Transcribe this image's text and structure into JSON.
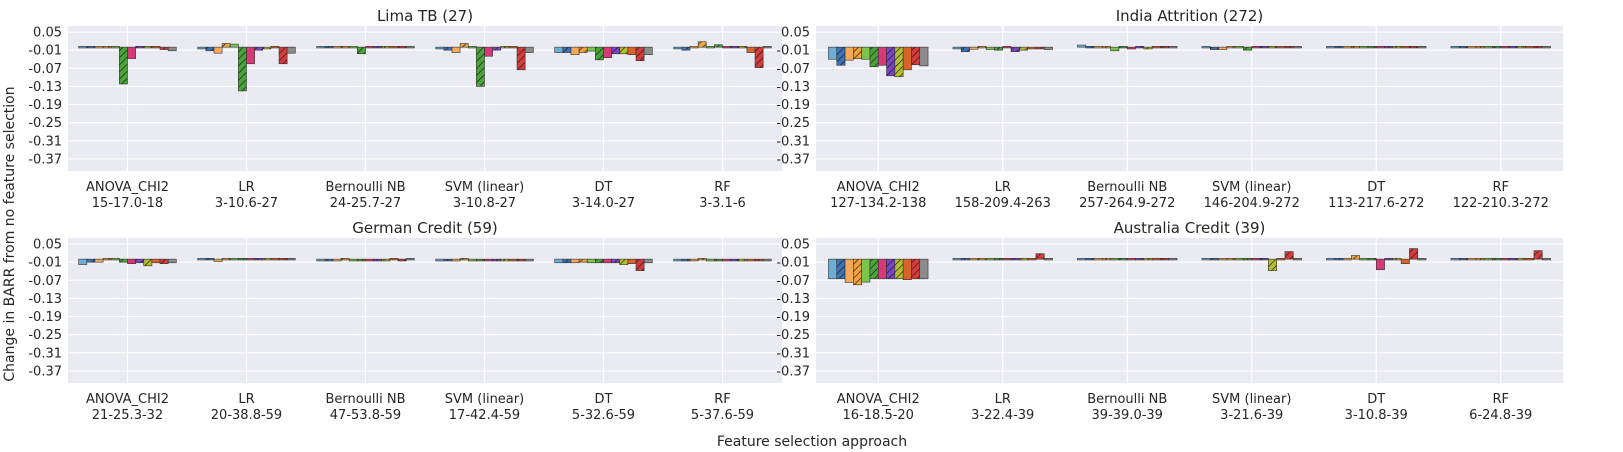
{
  "figure": {
    "ylabel": "Change in BARR from no feature selection",
    "xlabel": "Feature selection approach"
  },
  "palette": [
    "#6baed6",
    "#3d72b8",
    "#f4a95a",
    "#f1a23a",
    "#7cc44b",
    "#49a43a",
    "#d63a76",
    "#7b44c4",
    "#b5be2c",
    "#d9642b",
    "#d63b3b",
    "#8c8c8c"
  ],
  "hatched": [
    false,
    true,
    false,
    true,
    false,
    true,
    false,
    true,
    true,
    false,
    true,
    false
  ],
  "chart_data": [
    {
      "type": "bar",
      "title": "Lima TB (27)",
      "ylim": [
        -0.41,
        0.07
      ],
      "yticks": [
        "0.05",
        "-0.01",
        "-0.07",
        "-0.13",
        "-0.19",
        "-0.25",
        "-0.31",
        "-0.37"
      ],
      "ytick_values": [
        0.05,
        -0.01,
        -0.07,
        -0.13,
        -0.19,
        -0.25,
        -0.31,
        -0.37
      ],
      "groups": [
        {
          "name": "ANOVA_CHI2",
          "range": "15-17.0-18",
          "values": [
            -0.003,
            -0.003,
            0.002,
            -0.002,
            0.005,
            -0.122,
            -0.038,
            -0.002,
            -0.003,
            0.003,
            -0.008,
            -0.012
          ]
        },
        {
          "name": "LR",
          "range": "3-10.6-27",
          "values": [
            -0.006,
            -0.012,
            -0.02,
            0.012,
            0.01,
            -0.145,
            -0.055,
            -0.01,
            -0.006,
            -0.003,
            -0.055,
            -0.02
          ]
        },
        {
          "name": "Bernoulli NB",
          "range": "24-25.7-27",
          "values": [
            -0.001,
            -0.001,
            -0.002,
            -0.002,
            -0.003,
            -0.022,
            -0.003,
            -0.003,
            -0.002,
            -0.002,
            -0.002,
            -0.003
          ]
        },
        {
          "name": "SVM (linear)",
          "range": "3-10.8-27",
          "values": [
            -0.006,
            -0.01,
            -0.018,
            0.012,
            -0.002,
            -0.13,
            -0.03,
            -0.01,
            -0.005,
            -0.002,
            -0.075,
            -0.018
          ]
        },
        {
          "name": "DT",
          "range": "3-14.0-27",
          "values": [
            -0.018,
            -0.018,
            -0.025,
            -0.018,
            -0.013,
            -0.042,
            -0.035,
            -0.022,
            -0.022,
            -0.025,
            -0.045,
            -0.025
          ]
        },
        {
          "name": "RF",
          "range": "3-3.1-6",
          "values": [
            -0.006,
            -0.01,
            0.002,
            0.018,
            0.005,
            0.008,
            -0.003,
            -0.005,
            -0.002,
            -0.018,
            -0.068,
            -0.003
          ]
        }
      ]
    },
    {
      "type": "bar",
      "title": "India Attrition (272)",
      "ylim": [
        -0.41,
        0.07
      ],
      "yticks": [
        "0.05",
        "-0.01",
        "-0.07",
        "-0.13",
        "-0.19",
        "-0.25",
        "-0.31",
        "-0.37"
      ],
      "ytick_values": [
        0.05,
        -0.01,
        -0.07,
        -0.13,
        -0.19,
        -0.25,
        -0.31,
        -0.37
      ],
      "groups": [
        {
          "name": "ANOVA_CHI2",
          "range": "127-134.2-138",
          "values": [
            -0.04,
            -0.06,
            -0.043,
            -0.038,
            -0.04,
            -0.065,
            -0.06,
            -0.095,
            -0.098,
            -0.075,
            -0.058,
            -0.062
          ]
        },
        {
          "name": "LR",
          "range": "158-209.4-263",
          "values": [
            -0.006,
            -0.015,
            -0.007,
            -0.003,
            -0.008,
            -0.01,
            -0.005,
            -0.015,
            -0.01,
            -0.006,
            -0.006,
            -0.008
          ]
        },
        {
          "name": "Bernoulli NB",
          "range": "257-264.9-272",
          "values": [
            0.007,
            -0.004,
            -0.005,
            -0.001,
            -0.012,
            -0.003,
            -0.006,
            -0.005,
            -0.006,
            -0.003,
            -0.003,
            -0.004
          ]
        },
        {
          "name": "SVM (linear)",
          "range": "146-204.9-272",
          "values": [
            0.005,
            -0.008,
            -0.008,
            -0.001,
            0.002,
            -0.01,
            -0.004,
            -0.004,
            -0.004,
            -0.004,
            0.004,
            -0.004
          ]
        },
        {
          "name": "DT",
          "range": "113-217.6-272",
          "values": [
            -0.002,
            -0.002,
            -0.003,
            -0.003,
            -0.004,
            -0.005,
            -0.004,
            -0.004,
            -0.004,
            -0.004,
            -0.004,
            -0.003
          ]
        },
        {
          "name": "RF",
          "range": "122-210.3-272",
          "values": [
            -0.002,
            -0.004,
            -0.002,
            -0.002,
            -0.004,
            -0.005,
            -0.004,
            -0.003,
            -0.003,
            -0.003,
            -0.003,
            -0.003
          ]
        }
      ]
    },
    {
      "type": "bar",
      "title": "German Credit (59)",
      "ylim": [
        -0.41,
        0.07
      ],
      "yticks": [
        "0.05",
        "-0.01",
        "-0.07",
        "-0.13",
        "-0.19",
        "-0.25",
        "-0.31",
        "-0.37"
      ],
      "ytick_values": [
        0.05,
        -0.01,
        -0.07,
        -0.13,
        -0.19,
        -0.25,
        -0.31,
        -0.37
      ],
      "groups": [
        {
          "name": "ANOVA_CHI2",
          "range": "21-25.3-32",
          "values": [
            -0.018,
            -0.01,
            -0.01,
            0.004,
            -0.005,
            -0.01,
            -0.015,
            -0.012,
            -0.022,
            -0.012,
            -0.015,
            -0.012
          ]
        },
        {
          "name": "LR",
          "range": "20-38.8-59",
          "values": [
            -0.004,
            -0.004,
            -0.008,
            0.004,
            -0.004,
            -0.004,
            -0.004,
            -0.004,
            -0.004,
            -0.004,
            -0.004,
            -0.004
          ]
        },
        {
          "name": "Bernoulli NB",
          "range": "47-53.8-59",
          "values": [
            -0.006,
            -0.006,
            -0.006,
            -0.004,
            -0.006,
            -0.006,
            -0.006,
            -0.006,
            -0.006,
            -0.001,
            -0.006,
            -0.001
          ]
        },
        {
          "name": "SVM (linear)",
          "range": "17-42.4-59",
          "values": [
            -0.006,
            -0.006,
            -0.006,
            0.004,
            -0.006,
            -0.006,
            -0.006,
            -0.006,
            -0.006,
            -0.006,
            -0.006,
            -0.006
          ]
        },
        {
          "name": "DT",
          "range": "5-32.6-59",
          "values": [
            -0.012,
            -0.012,
            -0.012,
            -0.01,
            -0.012,
            -0.012,
            -0.012,
            -0.012,
            -0.018,
            -0.015,
            -0.038,
            -0.012
          ]
        },
        {
          "name": "RF",
          "range": "5-37.6-59",
          "values": [
            -0.006,
            -0.006,
            -0.006,
            -0.002,
            -0.006,
            -0.006,
            -0.006,
            -0.006,
            -0.006,
            -0.006,
            -0.006,
            -0.006
          ]
        }
      ]
    },
    {
      "type": "bar",
      "title": "Australia Credit (39)",
      "ylim": [
        -0.41,
        0.07
      ],
      "yticks": [
        "0.05",
        "-0.01",
        "-0.07",
        "-0.13",
        "-0.19",
        "-0.25",
        "-0.31",
        "-0.37"
      ],
      "ytick_values": [
        0.05,
        -0.01,
        -0.07,
        -0.13,
        -0.19,
        -0.25,
        -0.31,
        -0.37
      ],
      "groups": [
        {
          "name": "ANOVA_CHI2",
          "range": "16-18.5-20",
          "values": [
            -0.065,
            -0.065,
            -0.077,
            -0.085,
            -0.076,
            -0.065,
            -0.065,
            -0.065,
            -0.065,
            -0.068,
            -0.065,
            -0.065
          ]
        },
        {
          "name": "LR",
          "range": "3-22.4-39",
          "values": [
            0.002,
            -0.003,
            -0.001,
            -0.001,
            -0.001,
            -0.001,
            -0.004,
            -0.002,
            -0.003,
            -0.002,
            0.018,
            -0.001
          ]
        },
        {
          "name": "Bernoulli NB",
          "range": "39-39.0-39",
          "values": [
            0,
            0,
            0,
            0,
            0,
            0,
            0,
            0,
            0,
            0,
            0,
            0
          ]
        },
        {
          "name": "SVM (linear)",
          "range": "3-21.6-39",
          "values": [
            0.002,
            -0.003,
            -0.001,
            -0.001,
            0.002,
            -0.001,
            -0.002,
            -0.001,
            -0.038,
            -0.001,
            0.025,
            -0.001
          ]
        },
        {
          "name": "DT",
          "range": "3-10.8-39",
          "values": [
            0.004,
            -0.001,
            0.002,
            0.012,
            0.004,
            0.003,
            -0.035,
            -0.001,
            -0.001,
            -0.015,
            0.035,
            -0.001
          ]
        },
        {
          "name": "RF",
          "range": "6-24.8-39",
          "values": [
            -0.001,
            -0.001,
            -0.001,
            -0.001,
            -0.001,
            -0.001,
            -0.001,
            -0.001,
            -0.001,
            -0.001,
            0.028,
            -0.001
          ]
        }
      ]
    }
  ]
}
